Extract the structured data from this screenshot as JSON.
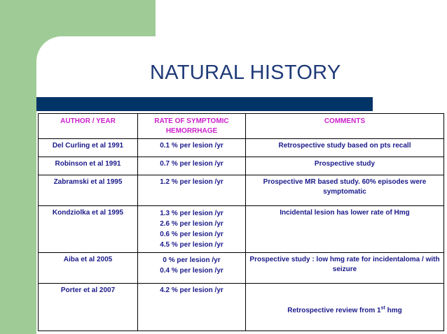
{
  "slide": {
    "title": "NATURAL HISTORY"
  },
  "table": {
    "headers": {
      "author": "AUTHOR / YEAR",
      "rate": "RATE OF SYMPTOMIC HEMORRHAGE",
      "comments": "COMMENTS"
    },
    "rows": [
      {
        "author": "Del Curling et al 1991",
        "rates": [
          "0.1 % per lesion /yr"
        ],
        "comment": "Retrospective study based on pts recall"
      },
      {
        "author": "Robinson et al 1991",
        "rates": [
          "0.7 % per lesion /yr"
        ],
        "comment": "Prospective study"
      },
      {
        "author": "Zabramski et al 1995",
        "rates": [
          "1.2 % per lesion /yr"
        ],
        "comment": "Prospective MR based study. 60% episodes were symptomatic"
      },
      {
        "author": "Kondziolka et al 1995",
        "rates": [
          "1.3 % per lesion /yr",
          "2.6 % per lesion /yr",
          "0.6 % per lesion /yr",
          "4.5 % per lesion /yr"
        ],
        "comment": "Incidental lesion has lower rate of Hmg"
      },
      {
        "author": "Aiba et al 2005",
        "rates": [
          "0 % per lesion /yr",
          "0.4 % per lesion /yr"
        ],
        "comment": "Prospective study : low hmg rate for incidentaloma / with seizure"
      },
      {
        "author": "Porter et al 2007",
        "rates": [
          "4.2 % per lesion /yr"
        ],
        "comment_before": "Retrospective review from 1",
        "comment_sup": "st",
        "comment_after": " hmg"
      }
    ]
  }
}
